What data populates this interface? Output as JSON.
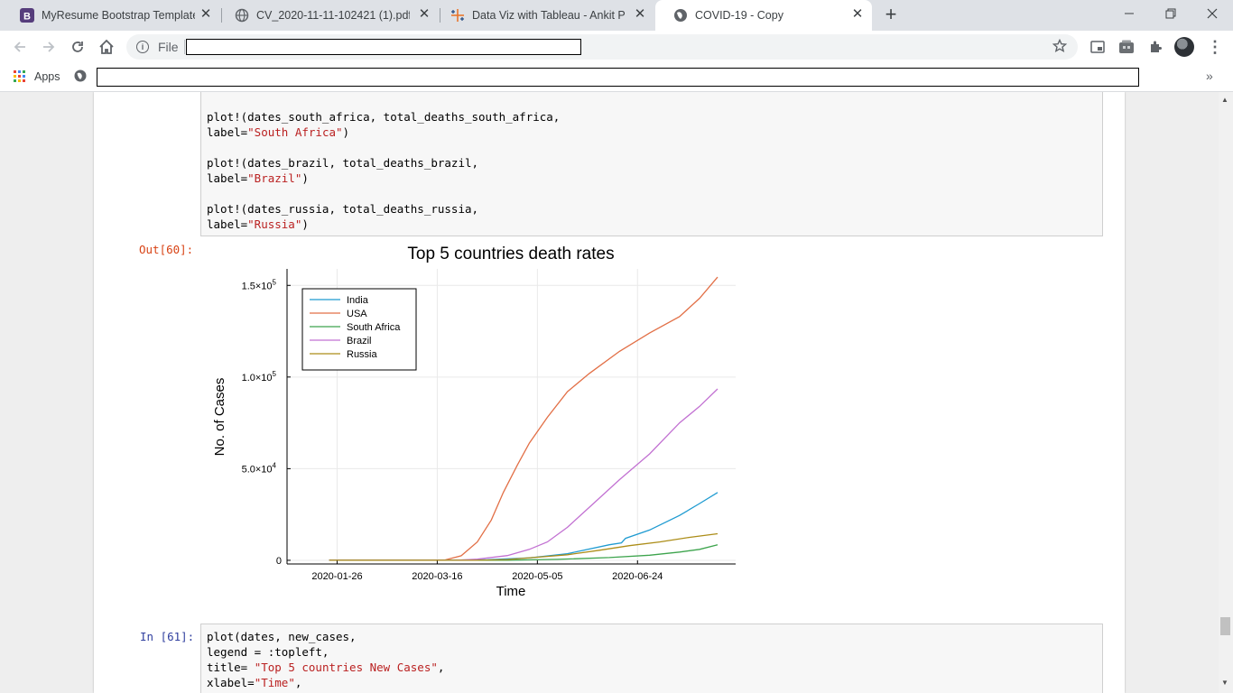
{
  "tabs": [
    {
      "title": "MyResume Bootstrap Template -",
      "icon": "bootstrap-icon"
    },
    {
      "title": "CV_2020-11-11-102421 (1).pdf",
      "icon": "globe-icon"
    },
    {
      "title": "Data Viz with Tableau - Ankit Pra",
      "icon": "tableau-icon"
    },
    {
      "title": "COVID-19 - Copy",
      "icon": "globe-icon"
    }
  ],
  "tab_close": "✕",
  "new_tab": "+",
  "toolbar": {
    "file_label": "File"
  },
  "bookmarks": {
    "apps_label": "Apps"
  },
  "notebook": {
    "code_cell_1": [
      "plot!(dates_south_africa, total_deaths_south_africa,",
      "label=",
      "\"South Africa\"",
      ")",
      "plot!(dates_brazil, total_deaths_brazil,",
      "label=",
      "\"Brazil\"",
      ")",
      "plot!(dates_russia, total_deaths_russia,",
      "label=",
      "\"Russia\"",
      ")"
    ],
    "out_prompt": "Out[60]:",
    "in_prompt": "In [61]:",
    "code_cell_2": [
      "plot(dates, new_cases,",
      "legend = :topleft,",
      "title= ",
      "\"Top 5 countries New Cases\"",
      ",",
      "xlabel=",
      "\"Time\"",
      ","
    ]
  },
  "chart_data": {
    "type": "line",
    "title": "Top 5 countries death rates",
    "xlabel": "Time",
    "ylabel": "No. of Cases",
    "x_ticks": [
      "2020-01-26",
      "2020-03-16",
      "2020-05-05",
      "2020-06-24"
    ],
    "y_ticks": [
      {
        "value": 150000,
        "mantissa": "1.5×10",
        "exp": "5"
      },
      {
        "value": 100000,
        "mantissa": "1.0×10",
        "exp": "5"
      },
      {
        "value": 50000,
        "mantissa": "5.0×10",
        "exp": "4"
      },
      {
        "value": 0,
        "mantissa": "0",
        "exp": ""
      }
    ],
    "xlim": [
      "2020-01-01",
      "2020-08-12"
    ],
    "ylim": [
      -2000,
      159000
    ],
    "grid": true,
    "legend_position": "top-left",
    "series": [
      {
        "name": "India",
        "color": "#1f9bd1",
        "points": [
          [
            "2020-01-22",
            0
          ],
          [
            "2020-03-20",
            0
          ],
          [
            "2020-04-10",
            300
          ],
          [
            "2020-05-01",
            1300
          ],
          [
            "2020-05-20",
            3600
          ],
          [
            "2020-06-10",
            8500
          ],
          [
            "2020-06-16",
            9500
          ],
          [
            "2020-06-18",
            12000
          ],
          [
            "2020-06-30",
            16500
          ],
          [
            "2020-07-15",
            24500
          ],
          [
            "2020-07-25",
            31000
          ],
          [
            "2020-08-03",
            37000
          ]
        ]
      },
      {
        "name": "USA",
        "color": "#e26f46",
        "points": [
          [
            "2020-01-22",
            0
          ],
          [
            "2020-03-10",
            0
          ],
          [
            "2020-03-20",
            200
          ],
          [
            "2020-03-28",
            2500
          ],
          [
            "2020-04-05",
            10000
          ],
          [
            "2020-04-12",
            22000
          ],
          [
            "2020-04-18",
            37000
          ],
          [
            "2020-04-25",
            52000
          ],
          [
            "2020-05-01",
            64000
          ],
          [
            "2020-05-10",
            78000
          ],
          [
            "2020-05-20",
            92000
          ],
          [
            "2020-05-31",
            102000
          ],
          [
            "2020-06-15",
            114000
          ],
          [
            "2020-06-30",
            124000
          ],
          [
            "2020-07-15",
            133000
          ],
          [
            "2020-07-25",
            143000
          ],
          [
            "2020-08-03",
            154500
          ]
        ]
      },
      {
        "name": "South Africa",
        "color": "#3da44d",
        "points": [
          [
            "2020-01-22",
            0
          ],
          [
            "2020-04-20",
            0
          ],
          [
            "2020-05-15",
            500
          ],
          [
            "2020-06-10",
            1500
          ],
          [
            "2020-06-30",
            2800
          ],
          [
            "2020-07-15",
            4500
          ],
          [
            "2020-07-25",
            6000
          ],
          [
            "2020-08-03",
            8500
          ]
        ]
      },
      {
        "name": "Brazil",
        "color": "#c271d2",
        "points": [
          [
            "2020-01-22",
            0
          ],
          [
            "2020-03-25",
            0
          ],
          [
            "2020-04-05",
            600
          ],
          [
            "2020-04-20",
            2600
          ],
          [
            "2020-05-01",
            6000
          ],
          [
            "2020-05-10",
            10000
          ],
          [
            "2020-05-20",
            18000
          ],
          [
            "2020-06-01",
            30000
          ],
          [
            "2020-06-15",
            44000
          ],
          [
            "2020-06-30",
            58000
          ],
          [
            "2020-07-15",
            75000
          ],
          [
            "2020-07-25",
            84000
          ],
          [
            "2020-08-03",
            93500
          ]
        ]
      },
      {
        "name": "Russia",
        "color": "#ac8d18",
        "points": [
          [
            "2020-01-22",
            0
          ],
          [
            "2020-04-05",
            0
          ],
          [
            "2020-04-20",
            400
          ],
          [
            "2020-05-05",
            1700
          ],
          [
            "2020-05-20",
            3000
          ],
          [
            "2020-06-05",
            5500
          ],
          [
            "2020-06-20",
            8000
          ],
          [
            "2020-07-05",
            10000
          ],
          [
            "2020-07-20",
            12500
          ],
          [
            "2020-08-03",
            14500
          ]
        ]
      }
    ]
  }
}
